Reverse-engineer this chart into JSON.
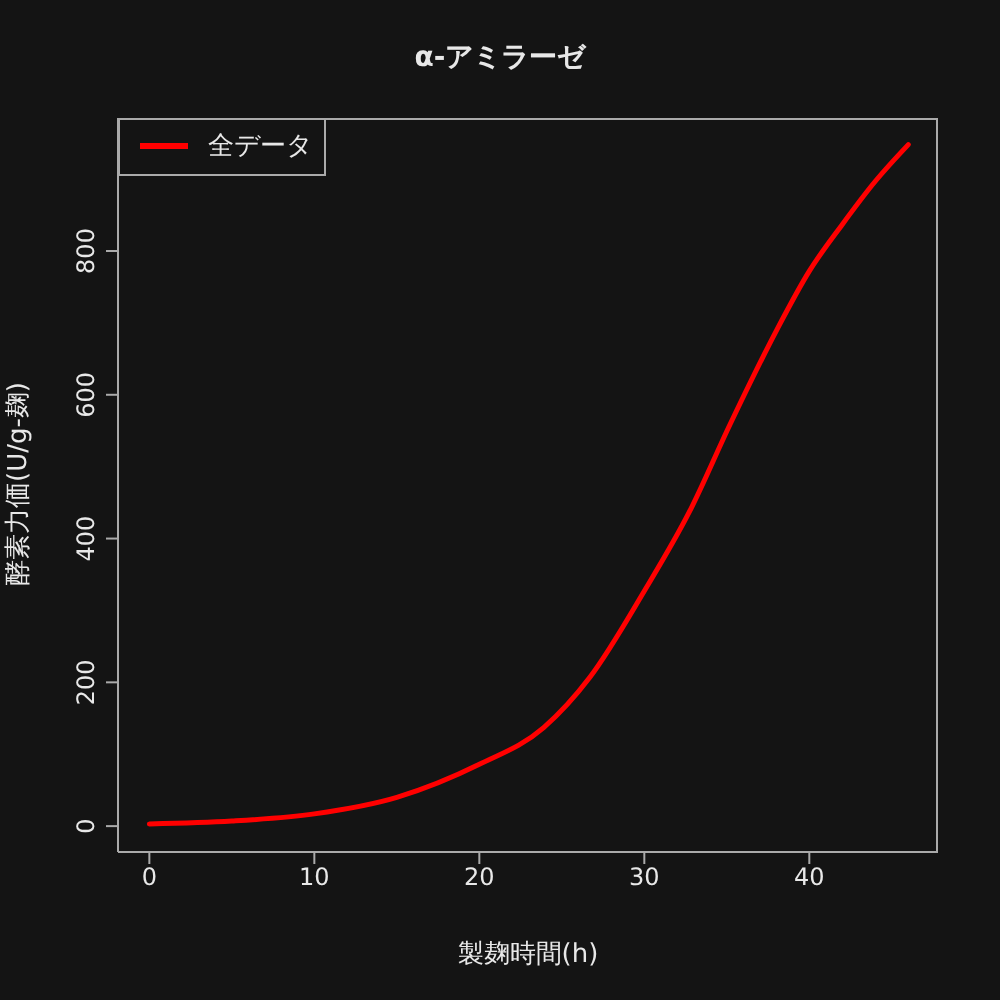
{
  "chart_data": {
    "type": "line",
    "title": "α-アミラーゼ",
    "xlabel": "製麹時間(h)",
    "ylabel": "酵素力価(U/g-麹)",
    "x": [
      0,
      5,
      10,
      15,
      20,
      23.9,
      26.7,
      30,
      32.75,
      35.2,
      38,
      40,
      42,
      44,
      46
    ],
    "series": [
      {
        "name": "全データ",
        "color": "#ff0000",
        "values": [
          3,
          7,
          17,
          40,
          86,
          137,
          207,
          327,
          438,
          559,
          689,
          772,
          837,
          897,
          948
        ]
      }
    ],
    "xlim": [
      -1.9,
      47.8
    ],
    "xticks": [
      0,
      10,
      20,
      30,
      40
    ],
    "ylim": [
      -36,
      985
    ],
    "yticks": [
      0,
      200,
      400,
      600,
      800
    ],
    "grid": false,
    "legend": "top left",
    "marker": "none",
    "line_style": "solid"
  }
}
